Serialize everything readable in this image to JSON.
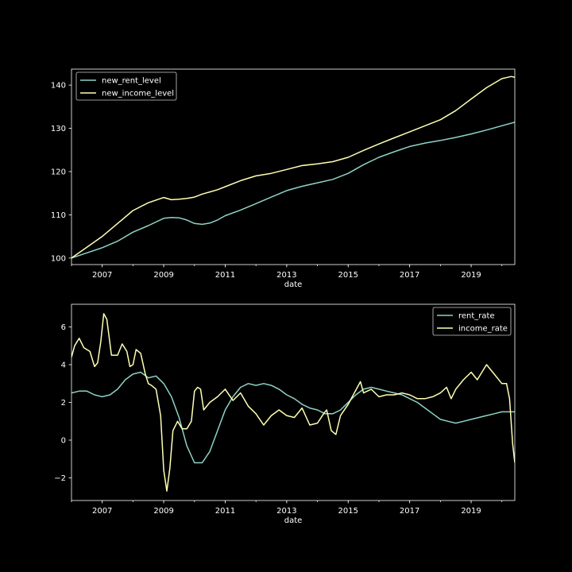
{
  "chart_data": [
    {
      "type": "line",
      "xlabel": "date",
      "ylabel": "",
      "xlim": [
        2006.0,
        2020.42
      ],
      "ylim": [
        98.5,
        143.7
      ],
      "xticks": [
        "2007",
        "2009",
        "2011",
        "2013",
        "2015",
        "2017",
        "2019"
      ],
      "yticks": [
        100,
        110,
        120,
        130,
        140
      ],
      "legend_position": "top-left",
      "series": [
        {
          "name": "new_rent_level",
          "color": "#8dd3c7",
          "x": [
            2006.0,
            2006.5,
            2007.0,
            2007.5,
            2008.0,
            2008.5,
            2009.0,
            2009.25,
            2009.5,
            2009.75,
            2010.0,
            2010.25,
            2010.5,
            2010.75,
            2011.0,
            2011.5,
            2012.0,
            2012.5,
            2013.0,
            2013.5,
            2014.0,
            2014.5,
            2015.0,
            2015.5,
            2016.0,
            2016.5,
            2017.0,
            2017.5,
            2018.0,
            2018.5,
            2019.0,
            2019.5,
            2020.0,
            2020.42
          ],
          "y": [
            100.0,
            101.2,
            102.4,
            103.9,
            106.0,
            107.5,
            109.2,
            109.4,
            109.3,
            108.8,
            108.0,
            107.8,
            108.1,
            108.8,
            109.8,
            111.1,
            112.6,
            114.1,
            115.6,
            116.6,
            117.4,
            118.2,
            119.6,
            121.6,
            123.3,
            124.6,
            125.8,
            126.6,
            127.2,
            127.9,
            128.7,
            129.6,
            130.6,
            131.4
          ]
        },
        {
          "name": "new_income_level",
          "color": "#ffffb3",
          "x": [
            2006.0,
            2006.5,
            2007.0,
            2007.5,
            2008.0,
            2008.5,
            2009.0,
            2009.25,
            2009.5,
            2009.75,
            2010.0,
            2010.25,
            2010.5,
            2010.75,
            2011.0,
            2011.5,
            2012.0,
            2012.5,
            2013.0,
            2013.5,
            2014.0,
            2014.5,
            2015.0,
            2015.5,
            2016.0,
            2016.5,
            2017.0,
            2017.5,
            2018.0,
            2018.5,
            2019.0,
            2019.5,
            2020.0,
            2020.3,
            2020.42
          ],
          "y": [
            100.0,
            102.5,
            105.0,
            108.0,
            111.0,
            112.8,
            114.0,
            113.5,
            113.6,
            113.8,
            114.1,
            114.8,
            115.3,
            115.8,
            116.5,
            117.9,
            119.0,
            119.6,
            120.5,
            121.4,
            121.8,
            122.3,
            123.3,
            124.9,
            126.4,
            127.8,
            129.2,
            130.6,
            132.0,
            134.1,
            136.8,
            139.4,
            141.5,
            142.0,
            141.8
          ]
        }
      ]
    },
    {
      "type": "line",
      "xlabel": "date",
      "ylabel": "",
      "xlim": [
        2006.0,
        2020.42
      ],
      "ylim": [
        -3.2,
        7.2
      ],
      "xticks": [
        "2007",
        "2009",
        "2011",
        "2013",
        "2015",
        "2017",
        "2019"
      ],
      "yticks": [
        -2,
        0,
        2,
        4,
        6
      ],
      "legend_position": "top-right",
      "series": [
        {
          "name": "rent_rate",
          "color": "#8dd3c7",
          "x": [
            2006.0,
            2006.25,
            2006.5,
            2006.75,
            2007.0,
            2007.25,
            2007.5,
            2007.75,
            2008.0,
            2008.25,
            2008.5,
            2008.75,
            2009.0,
            2009.25,
            2009.5,
            2009.75,
            2010.0,
            2010.25,
            2010.5,
            2010.75,
            2011.0,
            2011.25,
            2011.5,
            2011.75,
            2012.0,
            2012.25,
            2012.5,
            2012.75,
            2013.0,
            2013.25,
            2013.5,
            2013.75,
            2014.0,
            2014.25,
            2014.5,
            2014.75,
            2015.0,
            2015.25,
            2015.5,
            2015.75,
            2016.0,
            2016.25,
            2016.5,
            2016.75,
            2017.0,
            2017.25,
            2017.5,
            2017.75,
            2018.0,
            2018.25,
            2018.5,
            2018.75,
            2019.0,
            2019.25,
            2019.5,
            2019.75,
            2020.0,
            2020.25,
            2020.42
          ],
          "y": [
            2.5,
            2.6,
            2.6,
            2.4,
            2.3,
            2.4,
            2.7,
            3.2,
            3.5,
            3.6,
            3.3,
            3.4,
            3.0,
            2.3,
            1.2,
            -0.3,
            -1.2,
            -1.2,
            -0.6,
            0.5,
            1.6,
            2.3,
            2.8,
            3.0,
            2.9,
            3.0,
            2.9,
            2.7,
            2.4,
            2.2,
            1.9,
            1.7,
            1.6,
            1.4,
            1.4,
            1.6,
            2.0,
            2.4,
            2.7,
            2.8,
            2.7,
            2.6,
            2.5,
            2.4,
            2.2,
            2.0,
            1.7,
            1.4,
            1.1,
            1.0,
            0.9,
            1.0,
            1.1,
            1.2,
            1.3,
            1.4,
            1.5,
            1.5,
            1.5
          ]
        },
        {
          "name": "income_rate",
          "color": "#ffffb3",
          "x": [
            2006.0,
            2006.1,
            2006.25,
            2006.4,
            2006.6,
            2006.75,
            2006.85,
            2006.95,
            2007.05,
            2007.15,
            2007.3,
            2007.5,
            2007.65,
            2007.8,
            2007.9,
            2008.0,
            2008.1,
            2008.25,
            2008.4,
            2008.5,
            2008.6,
            2008.75,
            2008.9,
            2009.0,
            2009.1,
            2009.2,
            2009.3,
            2009.45,
            2009.6,
            2009.75,
            2009.9,
            2010.0,
            2010.1,
            2010.2,
            2010.3,
            2010.5,
            2010.75,
            2011.0,
            2011.25,
            2011.5,
            2011.75,
            2012.0,
            2012.25,
            2012.5,
            2012.75,
            2013.0,
            2013.25,
            2013.5,
            2013.75,
            2014.0,
            2014.2,
            2014.3,
            2014.45,
            2014.6,
            2014.75,
            2015.0,
            2015.2,
            2015.4,
            2015.5,
            2015.75,
            2016.0,
            2016.25,
            2016.5,
            2016.75,
            2017.0,
            2017.25,
            2017.5,
            2017.75,
            2018.0,
            2018.2,
            2018.35,
            2018.5,
            2018.75,
            2019.0,
            2019.2,
            2019.35,
            2019.5,
            2019.75,
            2020.0,
            2020.15,
            2020.25,
            2020.35,
            2020.42
          ],
          "y": [
            4.4,
            5.0,
            5.4,
            4.9,
            4.7,
            3.9,
            4.1,
            5.2,
            6.7,
            6.4,
            4.5,
            4.5,
            5.1,
            4.7,
            3.9,
            4.0,
            4.8,
            4.6,
            3.5,
            3.0,
            2.9,
            2.7,
            1.3,
            -1.6,
            -2.7,
            -1.5,
            0.5,
            1.0,
            0.6,
            0.6,
            1.0,
            2.6,
            2.8,
            2.7,
            1.6,
            2.0,
            2.3,
            2.7,
            2.1,
            2.5,
            1.8,
            1.4,
            0.8,
            1.3,
            1.6,
            1.3,
            1.2,
            1.7,
            0.8,
            0.9,
            1.4,
            1.6,
            0.5,
            0.3,
            1.3,
            1.9,
            2.5,
            3.1,
            2.5,
            2.7,
            2.3,
            2.4,
            2.4,
            2.5,
            2.4,
            2.2,
            2.2,
            2.3,
            2.5,
            2.8,
            2.2,
            2.7,
            3.2,
            3.6,
            3.2,
            3.6,
            4.0,
            3.5,
            3.0,
            3.0,
            2.2,
            -0.2,
            -1.2
          ]
        }
      ]
    }
  ]
}
